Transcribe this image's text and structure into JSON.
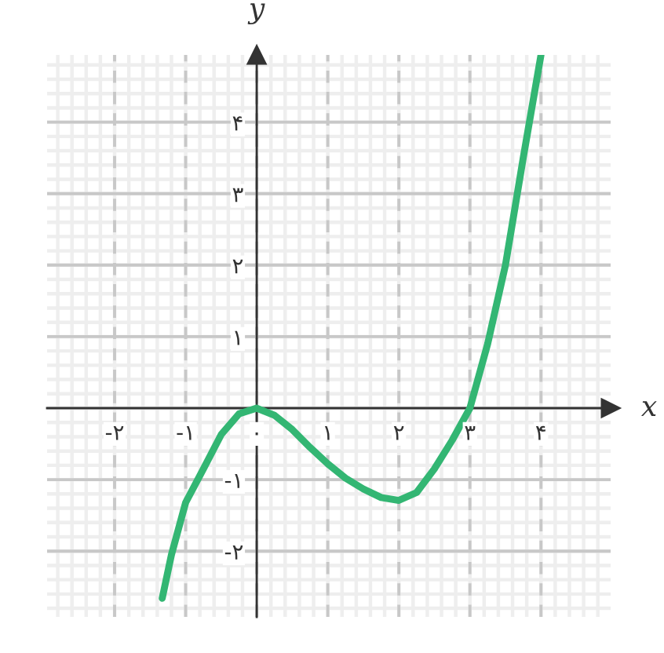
{
  "chart_data": {
    "type": "line",
    "xlabel": "x",
    "ylabel": "y",
    "x": [
      -1.33,
      -1.2,
      -1.0,
      -0.75,
      -0.5,
      -0.25,
      0,
      0.25,
      0.5,
      0.75,
      1.0,
      1.25,
      1.5,
      1.75,
      2.0,
      2.25,
      2.5,
      2.75,
      3.0,
      3.25,
      3.5,
      3.75,
      4.0
    ],
    "series": [
      {
        "color": "#33b673",
        "values": [
          -2.66,
          -2.05,
          -1.32,
          -0.85,
          -0.37,
          -0.08,
          0,
          -0.1,
          -0.3,
          -0.55,
          -0.78,
          -0.98,
          -1.13,
          -1.25,
          -1.29,
          -1.18,
          -0.85,
          -0.45,
          0,
          0.9,
          2.0,
          3.5,
          4.94
        ]
      }
    ],
    "xlim": [
      -2.95,
      4.98
    ],
    "ylim": [
      -2.92,
      4.94
    ],
    "xticks": [
      {
        "value": -2,
        "label": "-۲"
      },
      {
        "value": -1,
        "label": "-۱"
      },
      {
        "value": 0,
        "label": "۰"
      },
      {
        "value": 1,
        "label": "۱"
      },
      {
        "value": 2,
        "label": "۲"
      },
      {
        "value": 3,
        "label": "۳"
      },
      {
        "value": 4,
        "label": "۴"
      }
    ],
    "yticks": [
      {
        "value": -2,
        "label": "-۲"
      },
      {
        "value": -1,
        "label": "-۱"
      },
      {
        "value": 1,
        "label": "۱"
      },
      {
        "value": 2,
        "label": "۲"
      },
      {
        "value": 3,
        "label": "۳"
      },
      {
        "value": 4,
        "label": "۴"
      }
    ],
    "grid": true,
    "marker": "none",
    "line_style": "solid"
  }
}
